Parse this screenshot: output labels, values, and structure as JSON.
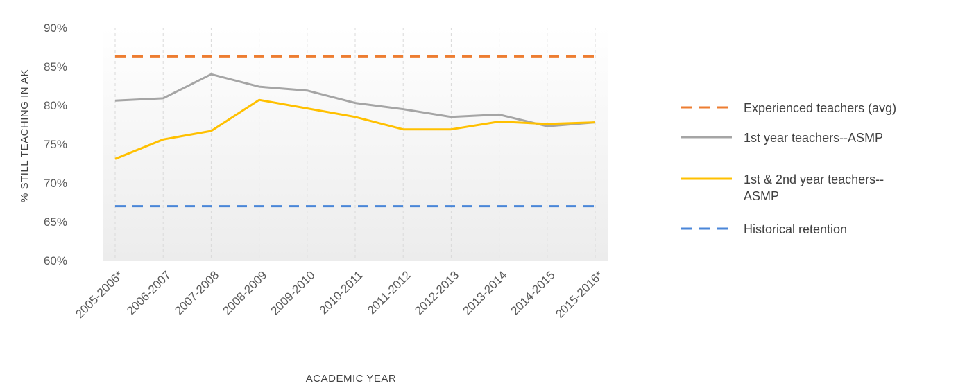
{
  "chart_data": {
    "type": "line",
    "title": "",
    "xlabel": "ACADEMIC YEAR",
    "ylabel": "% STILL TEACHING IN AK",
    "ylim": [
      60,
      90
    ],
    "yticks": [
      "60%",
      "65%",
      "70%",
      "75%",
      "80%",
      "85%",
      "90%"
    ],
    "categories": [
      "2005-2006*",
      "2006-2007",
      "2007-2008",
      "2008-2009",
      "2009-2010",
      "2010-2011",
      "2011-2012",
      "2012-2013",
      "2013-2014",
      "2014-2015",
      "2015-2016*"
    ],
    "grid": "vertical dashed",
    "legend_position": "right",
    "series": [
      {
        "name": "Experienced teachers (avg)",
        "style": "dashed",
        "color": "#ED7D31",
        "values": [
          86.3,
          86.3,
          86.3,
          86.3,
          86.3,
          86.3,
          86.3,
          86.3,
          86.3,
          86.3,
          86.3
        ]
      },
      {
        "name": "1st year teachers--ASMP",
        "style": "solid",
        "color": "#A5A5A5",
        "values": [
          80.6,
          80.9,
          84.0,
          82.4,
          81.9,
          80.3,
          79.5,
          78.5,
          78.8,
          77.3,
          77.8
        ]
      },
      {
        "name": "1st & 2nd year teachers--ASMP",
        "style": "solid",
        "color": "#FFC000",
        "values": [
          73.1,
          75.6,
          76.7,
          80.7,
          79.6,
          78.5,
          76.9,
          76.9,
          77.9,
          77.6,
          77.8
        ]
      },
      {
        "name": "Historical retention",
        "style": "dashed",
        "color": "#4A86D8",
        "values": [
          67.0,
          67.0,
          67.0,
          67.0,
          67.0,
          67.0,
          67.0,
          67.0,
          67.0,
          67.0,
          67.0
        ]
      }
    ],
    "legend": [
      {
        "label_lines": [
          "Experienced teachers (avg)"
        ],
        "style": "dashed",
        "color": "#ED7D31"
      },
      {
        "label_lines": [
          "1st year teachers--ASMP"
        ],
        "style": "solid",
        "color": "#A5A5A5"
      },
      {
        "label_lines": [
          "1st & 2nd year teachers--",
          "ASMP"
        ],
        "style": "solid",
        "color": "#FFC000"
      },
      {
        "label_lines": [
          "Historical retention"
        ],
        "style": "dashed",
        "color": "#4A86D8"
      }
    ]
  }
}
